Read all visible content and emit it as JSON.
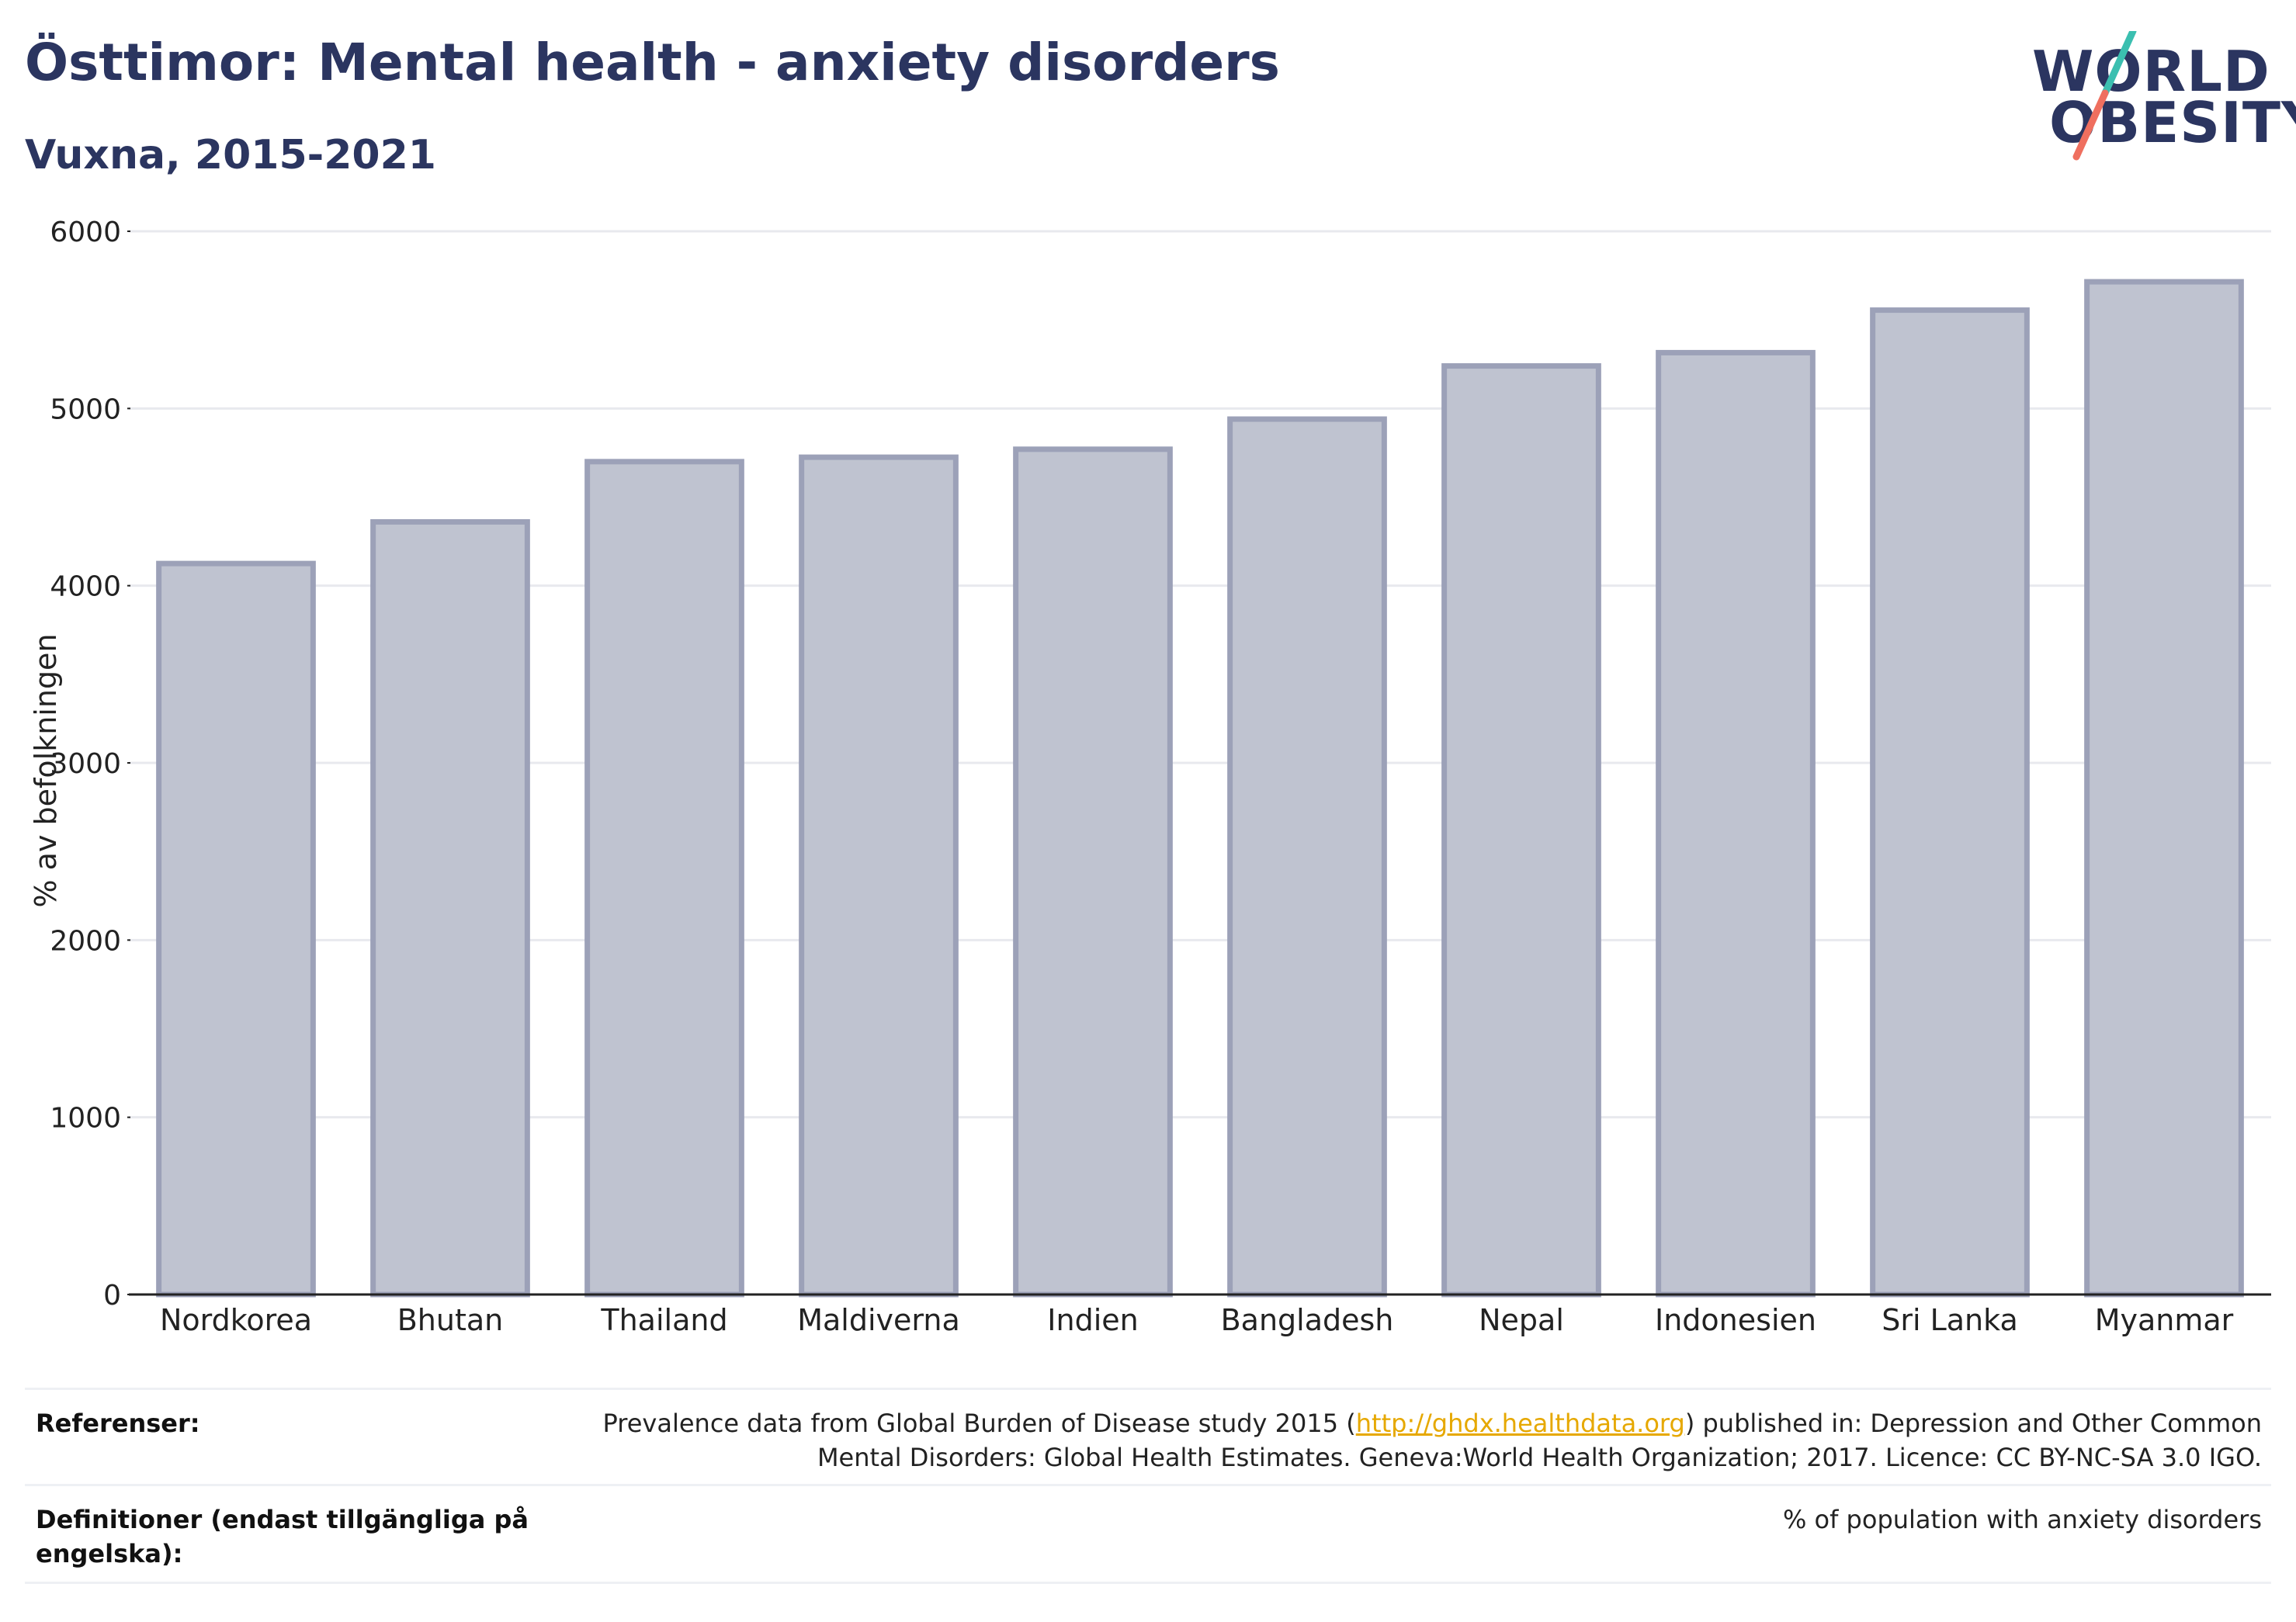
{
  "header": {
    "title": "Östtimor: Mental health - anxiety disorders",
    "subtitle": "Vuxna, 2015-2021",
    "logo_line1": "WORLD",
    "logo_line2": "OBESITY"
  },
  "colors": {
    "title": "#2b3560",
    "bar_fill": "#bfc3d0",
    "bar_stroke": "#9ca1b8",
    "grid": "#e8e9ee",
    "axis": "#222222",
    "link": "#e6a800",
    "logo_slash_top": "#3bbfb0",
    "logo_slash_bottom": "#ef6f5f"
  },
  "chart_data": {
    "type": "bar",
    "categories": [
      "Nordkorea",
      "Bhutan",
      "Thailand",
      "Maldiverna",
      "Indien",
      "Bangladesh",
      "Nepal",
      "Indonesien",
      "Sri Lanka",
      "Myanmar"
    ],
    "values": [
      4125,
      4360,
      4700,
      4725,
      4770,
      4940,
      5240,
      5315,
      5555,
      5715
    ],
    "title": "Östtimor: Mental health - anxiety disorders",
    "subtitle": "Vuxna, 2015-2021",
    "xlabel": "",
    "ylabel": "% av befolkningen",
    "ylim": [
      0,
      6000
    ],
    "yticks": [
      0,
      1000,
      2000,
      3000,
      4000,
      5000,
      6000
    ],
    "grid": true,
    "legend": "none"
  },
  "references": {
    "label": "Referenser:",
    "text_before_link": "Prevalence data from Global Burden of Disease study 2015 (",
    "link": "http://ghdx.healthdata.org",
    "text_after_link": ") published in: Depression and Other Common Mental Disorders: Global Health Estimates. Geneva:World Health Organization; 2017. Licence: CC BY-NC-SA 3.0 IGO."
  },
  "definitions": {
    "label": "Definitioner (endast tillgängliga på engelska):",
    "text": "% of population with anxiety disorders"
  }
}
